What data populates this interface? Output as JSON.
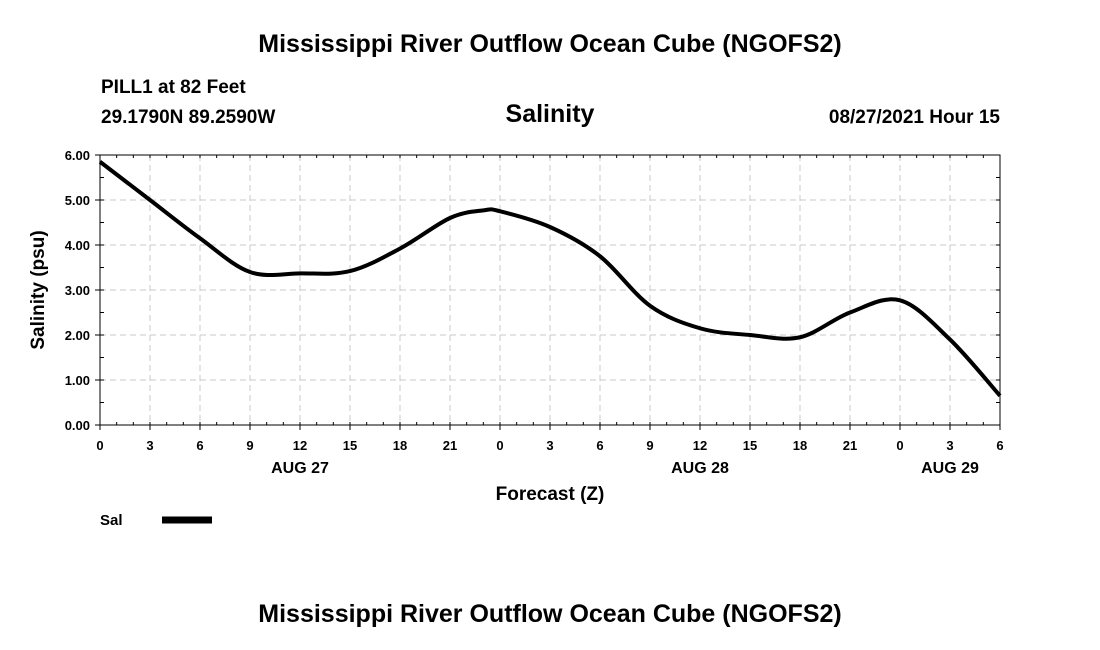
{
  "header": {
    "title": "Mississippi River Outflow Ocean Cube (NGOFS2)",
    "station": "PILL1 at 82 Feet",
    "coords": "29.1790N  89.2590W",
    "subtitle": "Salinity",
    "timestamp": "08/27/2021 Hour 15"
  },
  "footer": {
    "title": "Mississippi River Outflow Ocean Cube (NGOFS2)"
  },
  "chart_data": {
    "type": "line",
    "ylabel": "Salinity (psu)",
    "xlabel": "Forecast (Z)",
    "ylim": [
      0,
      6
    ],
    "xlim": [
      0,
      54
    ],
    "y_ticks": [
      "0.00",
      "1.00",
      "2.00",
      "3.00",
      "4.00",
      "5.00",
      "6.00"
    ],
    "x_ticks": [
      "0",
      "3",
      "6",
      "9",
      "12",
      "15",
      "18",
      "21",
      "0",
      "3",
      "6",
      "9",
      "12",
      "15",
      "18",
      "21",
      "0",
      "3",
      "6"
    ],
    "date_labels": [
      {
        "label": "AUG 27",
        "at_hour": 12
      },
      {
        "label": "AUG 28",
        "at_hour": 36
      },
      {
        "label": "AUG 29",
        "at_hour": 51
      }
    ],
    "grid": true,
    "legend": {
      "position": "bottom-left",
      "entries": [
        {
          "name": "Sal",
          "color": "#000000"
        }
      ]
    },
    "series": [
      {
        "name": "Sal",
        "color": "#000000",
        "x": [
          0,
          3,
          6,
          9,
          12,
          15,
          18,
          21,
          23,
          24,
          27,
          30,
          33,
          36,
          39,
          42,
          45,
          48,
          51,
          54
        ],
        "values": [
          5.85,
          5.0,
          4.15,
          3.4,
          3.37,
          3.42,
          3.92,
          4.6,
          4.77,
          4.75,
          4.4,
          3.75,
          2.65,
          2.15,
          2.0,
          1.95,
          2.5,
          2.77,
          1.9,
          0.65
        ]
      }
    ]
  }
}
